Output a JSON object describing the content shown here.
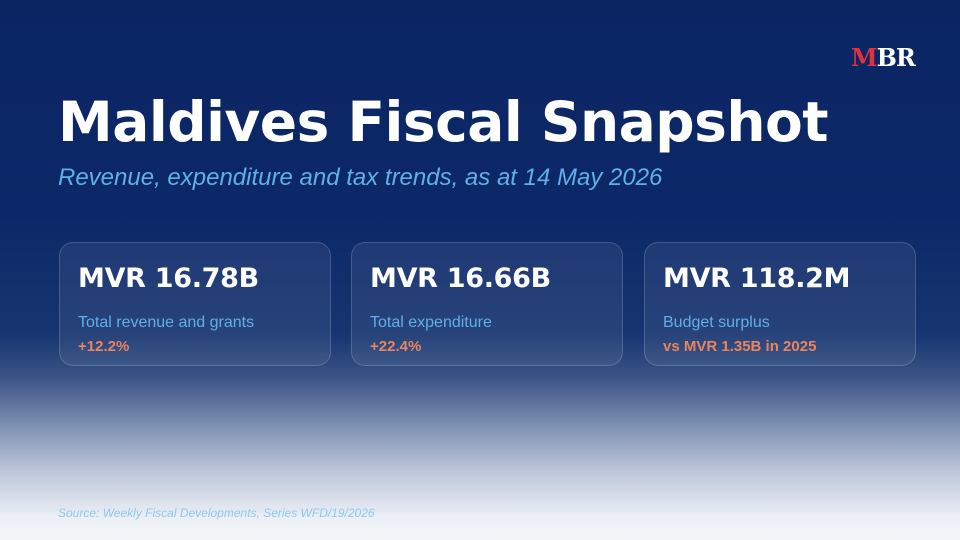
{
  "logo": {
    "text_accent": "M",
    "text_main": "BR",
    "accent_color": "#e0323e"
  },
  "header": {
    "title": "Maldives Fiscal Snapshot",
    "subtitle": "Revenue, expenditure and tax trends, as at 14 May 2026"
  },
  "stats": [
    {
      "value": "MVR 16.78B",
      "label": "Total revenue and grants",
      "change": "+12.2%"
    },
    {
      "value": "MVR 16.66B",
      "label": "Total expenditure",
      "change": "+22.4%"
    },
    {
      "value": "MVR 118.2M",
      "label": "Budget surplus",
      "change": "vs MVR 1.35B in 2025"
    }
  ],
  "footer": {
    "source": "Source: Weekly Fiscal Developments, Series WFD/19/2026"
  },
  "colors": {
    "background": "#0b2563",
    "title": "#ffffff",
    "subtitle": "#5fb0e6",
    "change": "#e8855e"
  }
}
